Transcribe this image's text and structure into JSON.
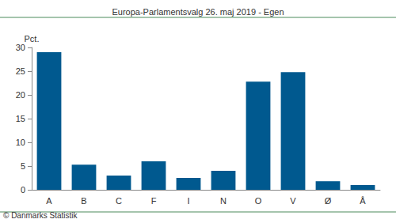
{
  "chart_data": {
    "type": "bar",
    "title": "Europa-Parlamentsvalg 26. maj 2019 - Egen",
    "ylabel": "Pct.",
    "footer": "© Danmarks Statistik",
    "categories": [
      "A",
      "B",
      "C",
      "F",
      "I",
      "N",
      "O",
      "V",
      "Ø",
      "Å"
    ],
    "values": [
      29.0,
      5.3,
      3.0,
      6.0,
      2.5,
      4.0,
      22.8,
      24.8,
      1.8,
      1.0
    ],
    "color": "#00598f",
    "ylim": [
      0,
      30
    ],
    "yticks": [
      0,
      5,
      10,
      15,
      20,
      25,
      30
    ],
    "grid": false
  }
}
